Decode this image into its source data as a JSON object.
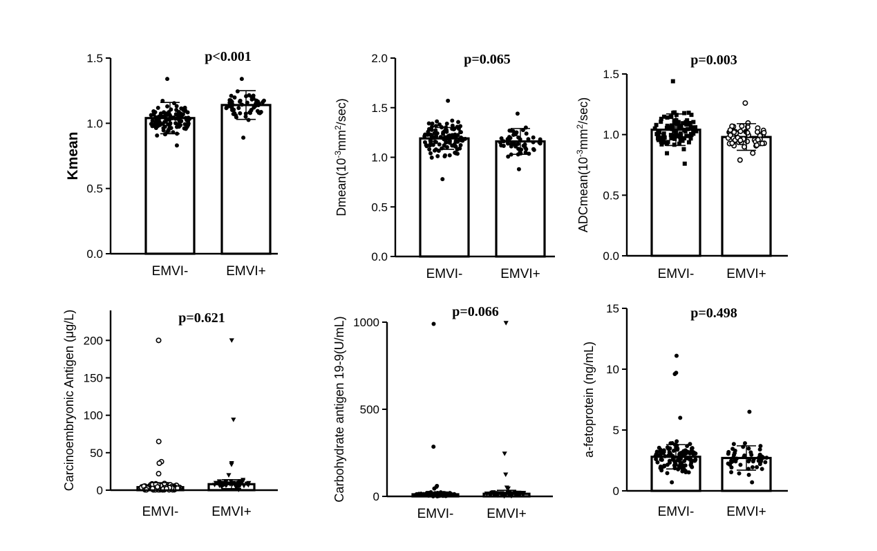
{
  "chart_data": [
    {
      "type": "bar",
      "title": "p<0.001",
      "ylabel": "Kmean",
      "ylim": [
        0,
        1.5
      ],
      "yticks": [
        "0.0",
        "0.5",
        "1.0",
        "1.5"
      ],
      "categories": [
        "EMVI-",
        "EMVI+"
      ],
      "values": [
        1.04,
        1.14
      ],
      "sd": [
        0.12,
        0.11
      ],
      "points": [
        {
          "n": 110,
          "min": 0.83,
          "max": 1.34,
          "marker": "circle"
        },
        {
          "n": 55,
          "min": 0.89,
          "max": 1.34,
          "marker": "circle"
        }
      ]
    },
    {
      "type": "bar",
      "title": "p=0.065",
      "ylabel": "Dmean(10",
      "ylabel_sup": "-3",
      "ylabel_mid": "mm",
      "ylabel_sup2": "2",
      "ylabel_end": "/sec)",
      "ylim": [
        0,
        2.0
      ],
      "yticks": [
        "0.0",
        "0.5",
        "1.0",
        "1.5",
        "2.0"
      ],
      "categories": [
        "EMVI-",
        "EMVI+"
      ],
      "values": [
        1.19,
        1.16
      ],
      "sd": [
        0.11,
        0.13
      ],
      "points": [
        {
          "n": 110,
          "min": 0.78,
          "max": 1.57,
          "marker": "circle"
        },
        {
          "n": 55,
          "min": 0.88,
          "max": 1.44,
          "marker": "circle"
        }
      ]
    },
    {
      "type": "bar",
      "title": "p=0.003",
      "ylabel": "ADCmean(10",
      "ylabel_sup": "-3",
      "ylabel_mid": "mm",
      "ylabel_sup2": "2",
      "ylabel_end": "/sec)",
      "ylim": [
        0,
        1.5
      ],
      "yticks": [
        "0.0",
        "0.5",
        "1.0",
        "1.5"
      ],
      "categories": [
        "EMVI-",
        "EMVI+"
      ],
      "values": [
        1.04,
        0.98
      ],
      "sd": [
        0.13,
        0.11
      ],
      "points": [
        {
          "n": 110,
          "min": 0.76,
          "max": 1.44,
          "marker": "square"
        },
        {
          "n": 55,
          "min": 0.79,
          "max": 1.26,
          "marker": "open-circle"
        }
      ]
    },
    {
      "type": "bar",
      "title": "p=0.621",
      "ylabel": "Carcinoembryonic Antigen (μg/L)",
      "ylim": [
        0,
        240
      ],
      "yticks": [
        "0",
        "50",
        "100",
        "150",
        "200"
      ],
      "categories": [
        "EMVI-",
        "EMVI+"
      ],
      "values": [
        4.0,
        8.0
      ],
      "sd": [
        6,
        6
      ],
      "points": [
        {
          "n": 110,
          "min": 0.5,
          "max": 22,
          "marker": "open-circle",
          "outliers": [
            200,
            65,
            38,
            36
          ]
        },
        {
          "n": 55,
          "min": 0.5,
          "max": 20,
          "marker": "triangle",
          "outliers": [
            200,
            94,
            36,
            34
          ]
        }
      ]
    },
    {
      "type": "bar",
      "title": "p=0.066",
      "ylabel": "Carbohydrate antigen 19-9(U/mL)",
      "ylim": [
        0,
        1000
      ],
      "yticks": [
        "0",
        "500",
        "1000"
      ],
      "categories": [
        "EMVI-",
        "EMVI+"
      ],
      "values": [
        12,
        15
      ],
      "sd": [
        10,
        20
      ],
      "points": [
        {
          "n": 110,
          "min": 0.5,
          "max": 45,
          "marker": "circle",
          "outliers": [
            990,
            285,
            60,
            55
          ]
        },
        {
          "n": 55,
          "min": 0.5,
          "max": 45,
          "marker": "triangle",
          "outliers": [
            995,
            245,
            125,
            50
          ]
        }
      ]
    },
    {
      "type": "bar",
      "title": "p=0.498",
      "ylabel": "a-fetoprotein (ng/mL)",
      "ylim": [
        0,
        15
      ],
      "yticks": [
        "0",
        "5",
        "10",
        "15"
      ],
      "categories": [
        "EMVI-",
        "EMVI+"
      ],
      "values": [
        2.8,
        2.7
      ],
      "sd": [
        1.0,
        1.0
      ],
      "points": [
        {
          "n": 110,
          "min": 0.7,
          "max": 6.0,
          "marker": "circle",
          "outliers": [
            11.1,
            9.7,
            9.6
          ]
        },
        {
          "n": 55,
          "min": 0.7,
          "max": 6.5,
          "marker": "circle",
          "outliers": []
        }
      ]
    }
  ]
}
